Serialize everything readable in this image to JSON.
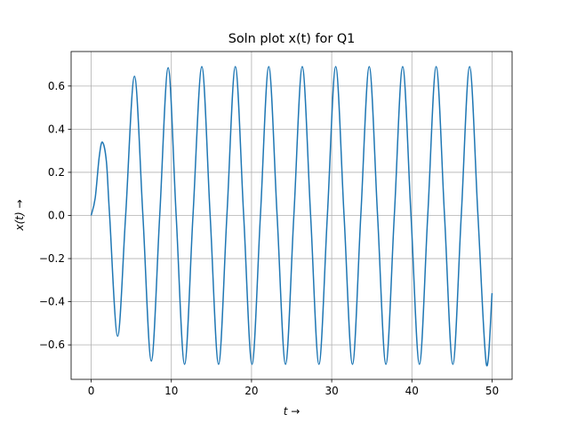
{
  "chart_data": {
    "type": "line",
    "title": "Soln plot x(t) for Q1",
    "xlabel": "t →",
    "ylabel": "x(t) →",
    "x": [
      0,
      0.5,
      1.0,
      1.4,
      1.9,
      2.3,
      3.3,
      4.3,
      5.4,
      6.45,
      7.5,
      8.55,
      9.6,
      10.6,
      11.65,
      12.7,
      13.8,
      14.84,
      15.89,
      16.93,
      17.98,
      19.02,
      20.06,
      21.11,
      22.15,
      23.19,
      24.24,
      25.28,
      26.33,
      27.37,
      28.41,
      29.46,
      30.5,
      31.54,
      32.59,
      33.63,
      34.68,
      35.72,
      36.76,
      37.81,
      38.85,
      39.89,
      40.94,
      41.98,
      43.03,
      44.07,
      45.11,
      46.16,
      47.2,
      48.24,
      49.29,
      50
    ],
    "values": [
      0,
      0.08,
      0.27,
      0.34,
      0.25,
      0,
      -0.56,
      0,
      0.645,
      0,
      -0.675,
      0,
      0.685,
      0,
      -0.69,
      0,
      0.69,
      0,
      -0.69,
      0,
      0.69,
      0,
      -0.69,
      0,
      0.69,
      0,
      -0.69,
      0,
      0.69,
      0,
      -0.69,
      0,
      0.69,
      0,
      -0.69,
      0,
      0.69,
      0,
      -0.69,
      0,
      0.69,
      0,
      -0.69,
      0,
      0.69,
      0,
      -0.69,
      0,
      0.69,
      0,
      -0.69,
      -0.36
    ],
    "color": "#1f77b4",
    "xlim": [
      -2.5,
      52.5
    ],
    "ylim": [
      -0.76,
      0.76
    ],
    "xticks": [
      0,
      10,
      20,
      30,
      40,
      50
    ],
    "yticks": [
      {
        "value": -0.6,
        "label": "−0.6"
      },
      {
        "value": -0.4,
        "label": "−0.4"
      },
      {
        "value": -0.2,
        "label": "−0.2"
      },
      {
        "value": 0,
        "label": "0.0"
      },
      0.2,
      0.4,
      0.6
    ],
    "grid": true
  }
}
